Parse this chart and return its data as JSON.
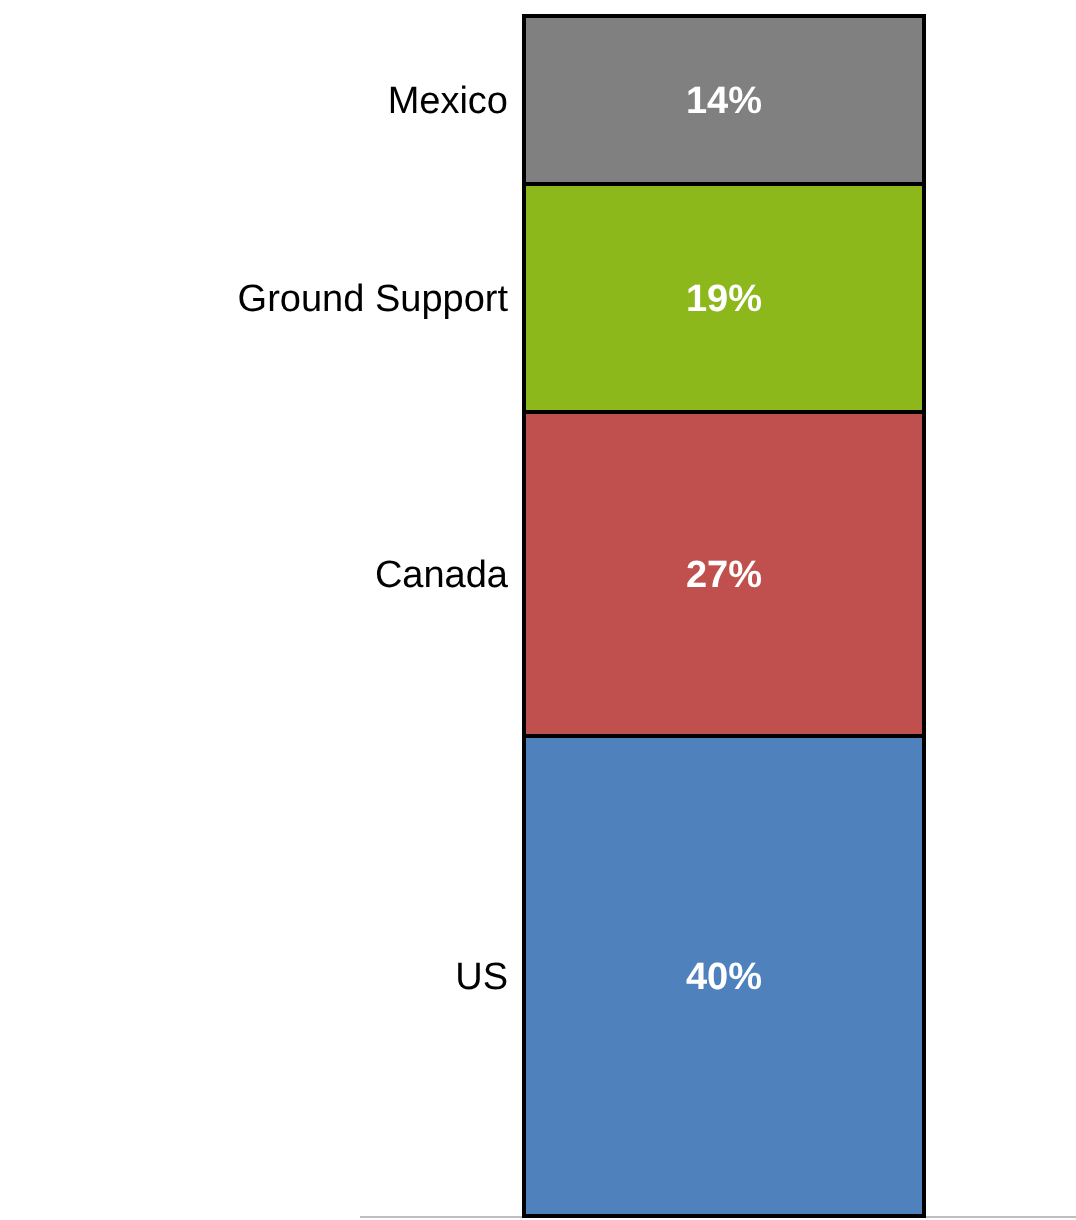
{
  "chart_data": {
    "type": "bar",
    "stacked": true,
    "categories": [
      null
    ],
    "series": [
      {
        "name": "US",
        "color": "#4f81bd",
        "values": [
          40
        ],
        "value_labels": [
          "40%"
        ]
      },
      {
        "name": "Canada",
        "color": "#c0504d",
        "values": [
          27
        ],
        "value_labels": [
          "27%"
        ]
      },
      {
        "name": "Ground Support",
        "color": "#8cb81c",
        "values": [
          19
        ],
        "value_labels": [
          "19%"
        ]
      },
      {
        "name": "Mexico",
        "color": "#808080",
        "values": [
          14
        ],
        "value_labels": [
          "14%"
        ]
      }
    ]
  }
}
